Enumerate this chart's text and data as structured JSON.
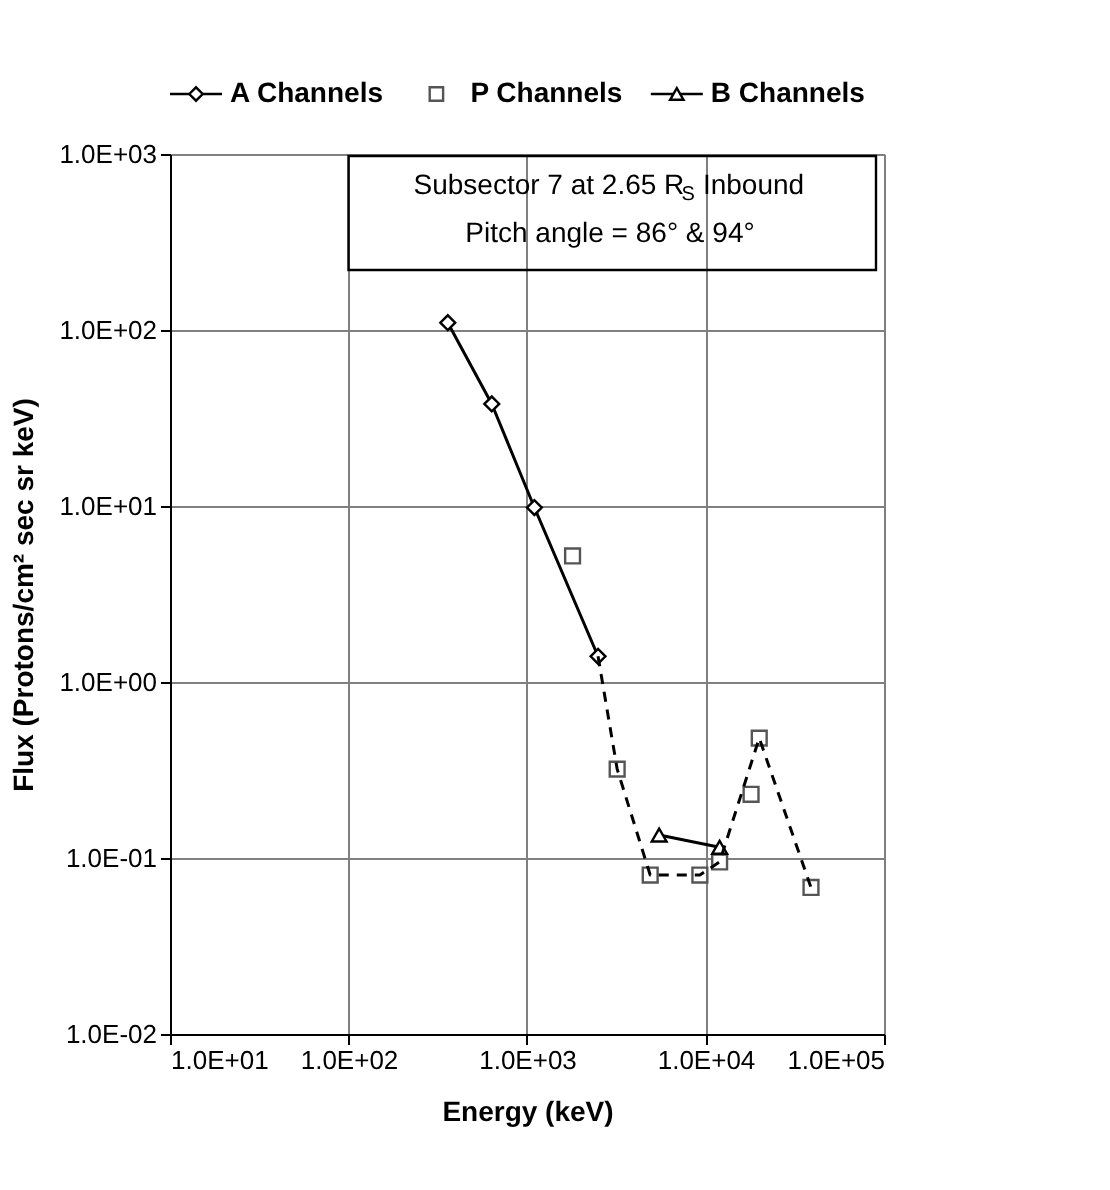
{
  "chart_data": {
    "type": "line",
    "xlabel": "Energy (keV)",
    "ylabel": "Flux (Protons/cm² sec sr keV)",
    "annotations": [
      "Subsector 7 at 2.65 R$_{S}$ Inbound",
      "Pitch angle = 86° & 94°"
    ],
    "log": "xy",
    "grid": true,
    "legend": "top",
    "xlim": [
      10,
      100000
    ],
    "ylim": [
      0.01,
      1000
    ],
    "xticks": [
      {
        "value": 10,
        "label": "1.0E+01"
      },
      {
        "value": 100,
        "label": "1.0E+02"
      },
      {
        "value": 1000,
        "label": "1.0E+03"
      },
      {
        "value": 10000,
        "label": "1.0E+04"
      },
      {
        "value": 100000,
        "label": "1.0E+05"
      }
    ],
    "yticks": [
      {
        "value": 0.01,
        "label": "1.0E-02"
      },
      {
        "value": 0.1,
        "label": "1.0E-01"
      },
      {
        "value": 1,
        "label": "1.0E+00"
      },
      {
        "value": 10,
        "label": "1.0E+01"
      },
      {
        "value": 100,
        "label": "1.0E+02"
      },
      {
        "value": 1000,
        "label": "1.0E+03"
      }
    ],
    "series": [
      {
        "name": "A Channels",
        "marker": "diamond",
        "line_style": "solid",
        "color": "#000000",
        "x": [
          360,
          635,
          1100,
          2500
        ],
        "values": [
          110,
          38,
          9.8,
          1.4
        ]
      },
      {
        "name": "P Channels",
        "type": "scatter",
        "marker": "square",
        "color": "#555555",
        "x": [
          1800,
          3200,
          4900,
          9300,
          12000,
          18000,
          20000,
          39000
        ],
        "values": [
          5.2,
          0.32,
          0.08,
          0.08,
          0.095,
          0.23,
          0.48,
          0.068
        ]
      },
      {
        "name": "B Channels",
        "marker": "triangle",
        "line_style": "solid",
        "color": "#000000",
        "x": [
          5500,
          12000
        ],
        "values": [
          0.135,
          0.115
        ]
      },
      {
        "marker": "none",
        "line_style": "dashed",
        "color": "#000000",
        "x": [
          2500,
          3200,
          4900,
          9300,
          12000,
          20000,
          39000
        ],
        "values": [
          1.4,
          0.32,
          0.08,
          0.08,
          0.095,
          0.48,
          0.068
        ]
      }
    ]
  }
}
